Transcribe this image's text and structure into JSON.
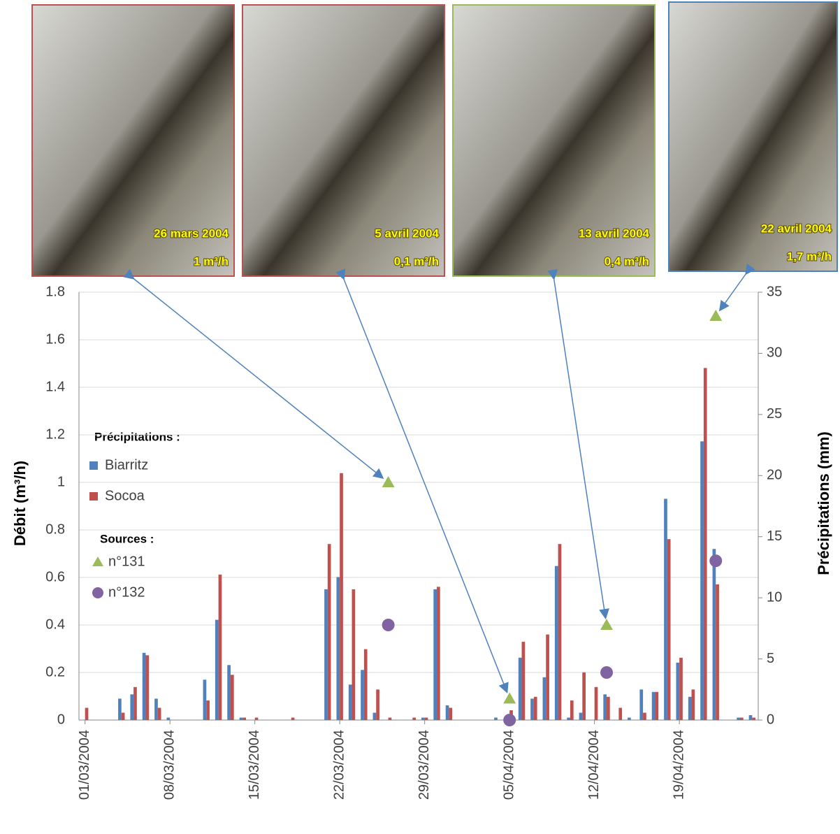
{
  "chart_data": {
    "type": "bar",
    "ylabel": "Débit (m³/h)",
    "y2label": "Précipitations (mm)",
    "legend_groups": [
      "Précipitations :",
      "Sources :"
    ],
    "categories": [
      "01/03/2004",
      null,
      null,
      null,
      null,
      null,
      null,
      "08/03/2004",
      null,
      null,
      null,
      null,
      null,
      null,
      "15/03/2004",
      null,
      null,
      null,
      null,
      null,
      null,
      "22/03/2004",
      null,
      null,
      null,
      null,
      null,
      null,
      "29/03/2004",
      null,
      null,
      null,
      null,
      null,
      null,
      "05/04/2004",
      null,
      null,
      null,
      null,
      null,
      null,
      "12/04/2004",
      null,
      null,
      null,
      null,
      null,
      null,
      "19/04/2004",
      null,
      null,
      null,
      null,
      null,
      null
    ],
    "series": [
      {
        "name": "Biarritz",
        "color": "#4f81bd",
        "axis": "y2",
        "values": [
          0,
          0,
          0,
          1.75,
          2.1,
          5.5,
          1.75,
          0.2,
          0,
          0,
          3.3,
          8.2,
          4.5,
          0.2,
          0,
          0,
          0,
          0,
          0,
          0,
          10.7,
          11.7,
          2.9,
          4.1,
          0.6,
          0,
          0,
          0,
          0.2,
          10.7,
          1.2,
          0,
          0,
          0,
          0.2,
          0.4,
          5.1,
          1.75,
          3.5,
          12.6,
          0.2,
          0.6,
          0,
          2.1,
          0,
          0.2,
          2.5,
          2.3,
          18.1,
          4.7,
          1.9,
          22.8,
          14,
          0,
          0.2,
          0.4
        ]
      },
      {
        "name": "Socoa",
        "color": "#c0504d",
        "axis": "y2",
        "values": [
          1.0,
          0,
          0,
          0.6,
          2.7,
          5.3,
          1.0,
          0,
          0,
          0,
          1.6,
          11.9,
          3.7,
          0.2,
          0.2,
          0,
          0,
          0.2,
          0,
          0,
          14.4,
          20.2,
          10.7,
          5.8,
          2.5,
          0.2,
          0,
          0.2,
          0.2,
          10.9,
          1.0,
          0,
          0,
          0,
          0,
          0.8,
          6.4,
          1.9,
          7.0,
          14.4,
          1.6,
          3.9,
          2.7,
          1.9,
          1.0,
          0,
          0.6,
          2.3,
          14.8,
          5.1,
          2.5,
          28.8,
          11.1,
          0,
          0.2,
          0.2
        ]
      },
      {
        "name": "n°131",
        "color": "#9bbb59",
        "marker": "triangle",
        "values": [
          null,
          null,
          null,
          null,
          null,
          null,
          null,
          null,
          null,
          null,
          null,
          null,
          null,
          null,
          null,
          null,
          null,
          null,
          null,
          null,
          null,
          null,
          null,
          null,
          null,
          1.0,
          null,
          null,
          null,
          null,
          null,
          null,
          null,
          null,
          null,
          0.09,
          null,
          null,
          null,
          null,
          null,
          null,
          null,
          0.4,
          null,
          null,
          null,
          null,
          null,
          null,
          null,
          null,
          1.7,
          null,
          null,
          null
        ]
      },
      {
        "name": "n°132",
        "color": "#8064a2",
        "marker": "circle",
        "values": [
          null,
          null,
          null,
          null,
          null,
          null,
          null,
          null,
          null,
          null,
          null,
          null,
          null,
          null,
          null,
          null,
          null,
          null,
          null,
          null,
          null,
          null,
          null,
          null,
          null,
          0.4,
          null,
          null,
          null,
          null,
          null,
          null,
          null,
          null,
          null,
          0,
          null,
          null,
          null,
          null,
          null,
          null,
          null,
          0.2,
          null,
          null,
          null,
          null,
          null,
          null,
          null,
          null,
          0.67,
          null,
          null,
          null
        ]
      }
    ],
    "ylim": [
      0,
      1.8
    ],
    "yticks": [
      0,
      0.2,
      0.4,
      0.6,
      0.8,
      1,
      1.2,
      1.4,
      1.6,
      1.8
    ],
    "y2lim": [
      0,
      35
    ],
    "y2ticks": [
      0,
      5,
      10,
      15,
      20,
      25,
      30,
      35
    ],
    "grid": true,
    "photos": [
      {
        "date": "26 mars 2004",
        "flow": "1 m³/h",
        "border": "#c0504d"
      },
      {
        "date": "5 avril 2004",
        "flow": "0,1 m³/h",
        "border": "#c0504d"
      },
      {
        "date": "13 avril 2004",
        "flow": "0,4 m³/h",
        "border": "#9bbb59"
      },
      {
        "date": "22 avril 2004",
        "flow": "1,7 m³/h",
        "border": "#4f81bd"
      }
    ]
  }
}
